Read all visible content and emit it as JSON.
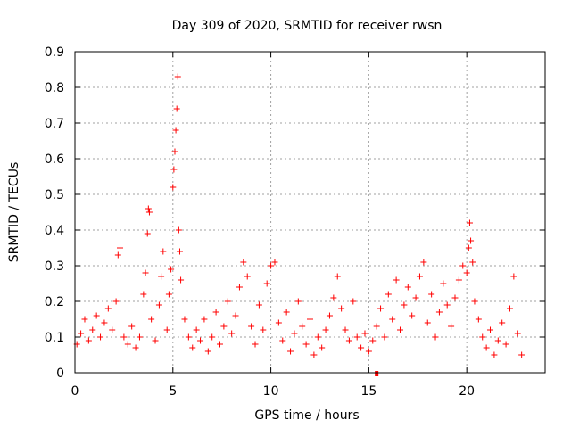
{
  "chart_data": {
    "type": "scatter",
    "title": "Day 309 of 2020, SRMTID for receiver rwsn",
    "xlabel": "GPS time / hours",
    "ylabel": "SRMTID / TECUs",
    "xlim": [
      0,
      24
    ],
    "ylim": [
      0,
      0.9
    ],
    "xticks": [
      0,
      5,
      10,
      15,
      20
    ],
    "yticks": [
      0,
      0.1,
      0.2,
      0.3,
      0.4,
      0.5,
      0.6,
      0.7,
      0.8,
      0.9
    ],
    "ytick_labels": [
      "0",
      "0.1",
      "0.2",
      "0.3",
      "0.4",
      "0.5",
      "0.6",
      "0.7",
      "0.8",
      "0.9"
    ],
    "grid": true,
    "marker": "+",
    "color": "#ff0000",
    "series": [
      {
        "name": "SRMTID",
        "points": [
          [
            0.1,
            0.08
          ],
          [
            0.3,
            0.11
          ],
          [
            0.5,
            0.15
          ],
          [
            0.7,
            0.09
          ],
          [
            0.9,
            0.12
          ],
          [
            1.1,
            0.16
          ],
          [
            1.3,
            0.1
          ],
          [
            1.5,
            0.14
          ],
          [
            1.7,
            0.18
          ],
          [
            1.9,
            0.12
          ],
          [
            2.1,
            0.2
          ],
          [
            2.2,
            0.33
          ],
          [
            2.3,
            0.35
          ],
          [
            2.5,
            0.1
          ],
          [
            2.7,
            0.08
          ],
          [
            2.9,
            0.13
          ],
          [
            3.1,
            0.07
          ],
          [
            3.3,
            0.1
          ],
          [
            3.5,
            0.22
          ],
          [
            3.6,
            0.28
          ],
          [
            3.7,
            0.39
          ],
          [
            3.75,
            0.46
          ],
          [
            3.8,
            0.45
          ],
          [
            3.9,
            0.15
          ],
          [
            4.1,
            0.09
          ],
          [
            4.3,
            0.19
          ],
          [
            4.4,
            0.27
          ],
          [
            4.5,
            0.34
          ],
          [
            4.7,
            0.12
          ],
          [
            4.8,
            0.22
          ],
          [
            4.9,
            0.29
          ],
          [
            5.0,
            0.52
          ],
          [
            5.05,
            0.57
          ],
          [
            5.1,
            0.62
          ],
          [
            5.15,
            0.68
          ],
          [
            5.2,
            0.74
          ],
          [
            5.25,
            0.83
          ],
          [
            5.3,
            0.4
          ],
          [
            5.35,
            0.34
          ],
          [
            5.4,
            0.26
          ],
          [
            5.6,
            0.15
          ],
          [
            5.8,
            0.1
          ],
          [
            6.0,
            0.07
          ],
          [
            6.2,
            0.12
          ],
          [
            6.4,
            0.09
          ],
          [
            6.6,
            0.15
          ],
          [
            6.8,
            0.06
          ],
          [
            7.0,
            0.1
          ],
          [
            7.2,
            0.17
          ],
          [
            7.4,
            0.08
          ],
          [
            7.6,
            0.13
          ],
          [
            7.8,
            0.2
          ],
          [
            8.0,
            0.11
          ],
          [
            8.2,
            0.16
          ],
          [
            8.4,
            0.24
          ],
          [
            8.6,
            0.31
          ],
          [
            8.8,
            0.27
          ],
          [
            9.0,
            0.13
          ],
          [
            9.2,
            0.08
          ],
          [
            9.4,
            0.19
          ],
          [
            9.6,
            0.12
          ],
          [
            9.8,
            0.25
          ],
          [
            10.0,
            0.3
          ],
          [
            10.2,
            0.31
          ],
          [
            10.4,
            0.14
          ],
          [
            10.6,
            0.09
          ],
          [
            10.8,
            0.17
          ],
          [
            11.0,
            0.06
          ],
          [
            11.2,
            0.11
          ],
          [
            11.4,
            0.2
          ],
          [
            11.6,
            0.13
          ],
          [
            11.8,
            0.08
          ],
          [
            12.0,
            0.15
          ],
          [
            12.2,
            0.05
          ],
          [
            12.4,
            0.1
          ],
          [
            12.6,
            0.07
          ],
          [
            12.8,
            0.12
          ],
          [
            13.0,
            0.16
          ],
          [
            13.2,
            0.21
          ],
          [
            13.4,
            0.27
          ],
          [
            13.6,
            0.18
          ],
          [
            13.8,
            0.12
          ],
          [
            14.0,
            0.09
          ],
          [
            14.2,
            0.2
          ],
          [
            14.4,
            0.1
          ],
          [
            14.6,
            0.07
          ],
          [
            14.8,
            0.11
          ],
          [
            15.0,
            0.06
          ],
          [
            15.2,
            0.09
          ],
          [
            15.4,
            0.13
          ],
          [
            15.6,
            0.18
          ],
          [
            15.8,
            0.1
          ],
          [
            16.0,
            0.22
          ],
          [
            16.2,
            0.15
          ],
          [
            16.4,
            0.26
          ],
          [
            16.6,
            0.12
          ],
          [
            16.8,
            0.19
          ],
          [
            17.0,
            0.24
          ],
          [
            17.2,
            0.16
          ],
          [
            17.4,
            0.21
          ],
          [
            17.6,
            0.27
          ],
          [
            17.8,
            0.31
          ],
          [
            18.0,
            0.14
          ],
          [
            18.2,
            0.22
          ],
          [
            18.4,
            0.1
          ],
          [
            18.6,
            0.17
          ],
          [
            18.8,
            0.25
          ],
          [
            19.0,
            0.19
          ],
          [
            19.2,
            0.13
          ],
          [
            19.4,
            0.21
          ],
          [
            19.6,
            0.26
          ],
          [
            19.8,
            0.3
          ],
          [
            20.0,
            0.28
          ],
          [
            20.1,
            0.35
          ],
          [
            20.15,
            0.42
          ],
          [
            20.2,
            0.37
          ],
          [
            20.3,
            0.31
          ],
          [
            20.4,
            0.2
          ],
          [
            20.6,
            0.15
          ],
          [
            20.8,
            0.1
          ],
          [
            21.0,
            0.07
          ],
          [
            21.2,
            0.12
          ],
          [
            21.4,
            0.05
          ],
          [
            21.6,
            0.09
          ],
          [
            21.8,
            0.14
          ],
          [
            22.0,
            0.08
          ],
          [
            22.2,
            0.18
          ],
          [
            22.4,
            0.27
          ],
          [
            22.6,
            0.11
          ],
          [
            22.8,
            0.05
          ]
        ]
      }
    ],
    "markers": [
      {
        "x": 15.4,
        "y": 0
      }
    ]
  }
}
